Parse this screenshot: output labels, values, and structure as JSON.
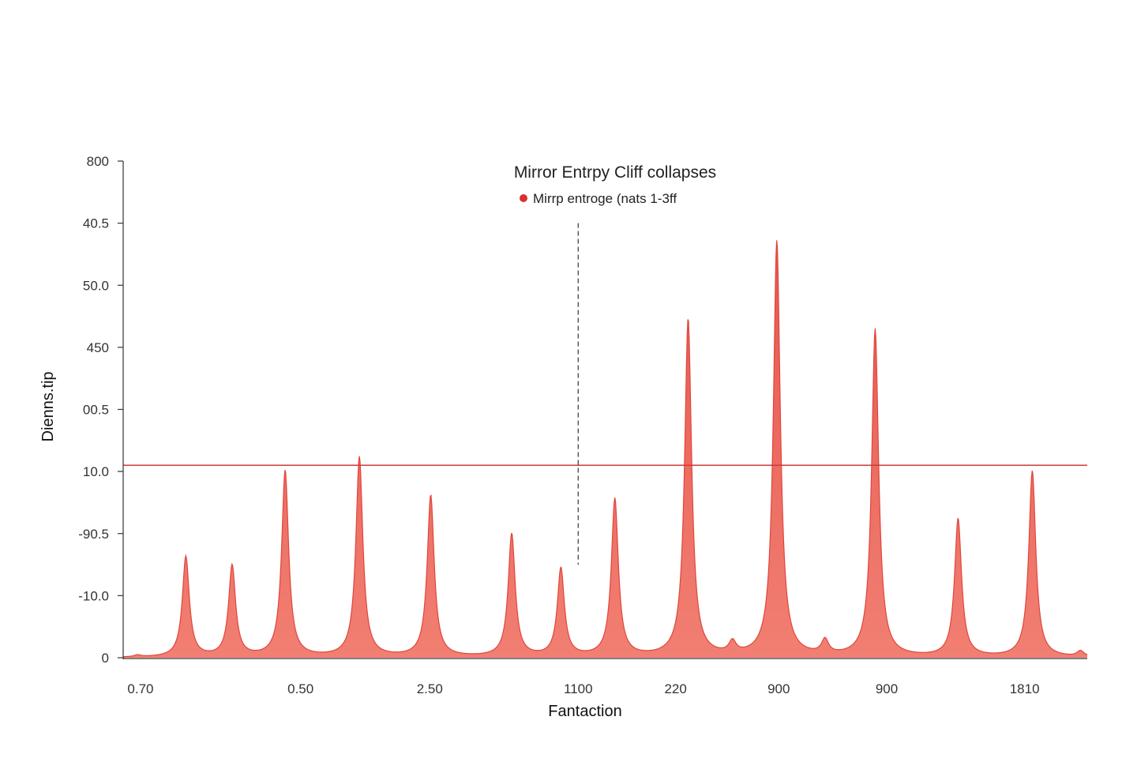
{
  "chart_data": {
    "type": "area",
    "title": "Mirror Entrpy Cliff collapses",
    "xlabel": "Fantaction",
    "ylabel": "Dienns.tip",
    "x_tick_labels": [
      "0.70",
      "0.50",
      "2.50",
      "1100",
      "220",
      "900",
      "900",
      "1810"
    ],
    "y_tick_labels": [
      "0",
      "-10.0",
      "-90.5",
      "10.0",
      "00.5",
      "450",
      "50.0",
      "40.5",
      "800"
    ],
    "y_tick_values": [
      0,
      1,
      2,
      3,
      4,
      5,
      6,
      7,
      8
    ],
    "ylim": [
      0,
      8
    ],
    "xlim": [
      0,
      100
    ],
    "legend": {
      "label": "Mirrp entroge (nats 1-3ff",
      "placement": "top-center"
    },
    "series": [
      {
        "name": "Mirrp entroge (nats 1-3ff",
        "color": "#f07466",
        "line_color": "#e0453c",
        "peaks": [
          {
            "x": 1.5,
            "y": 0.03
          },
          {
            "x": 6.5,
            "y": 1.62
          },
          {
            "x": 11.3,
            "y": 1.47
          },
          {
            "x": 16.8,
            "y": 3.0
          },
          {
            "x": 24.5,
            "y": 3.22
          },
          {
            "x": 31.9,
            "y": 2.6
          },
          {
            "x": 40.3,
            "y": 1.98
          },
          {
            "x": 45.4,
            "y": 1.42
          },
          {
            "x": 51.0,
            "y": 2.54
          },
          {
            "x": 58.6,
            "y": 5.44
          },
          {
            "x": 63.2,
            "y": 0.19
          },
          {
            "x": 67.8,
            "y": 6.7
          },
          {
            "x": 72.8,
            "y": 0.23
          },
          {
            "x": 78.0,
            "y": 5.28
          },
          {
            "x": 86.6,
            "y": 2.22
          },
          {
            "x": 94.3,
            "y": 3.0
          },
          {
            "x": 99.3,
            "y": 0.09
          }
        ]
      }
    ],
    "reference_lines": [
      {
        "orientation": "horizontal",
        "y": 3.1,
        "color": "#cc3b3b",
        "style": "solid"
      },
      {
        "orientation": "vertical",
        "x": 47.2,
        "y_from": 1.5,
        "y_to": 7.0,
        "color": "#444444",
        "style": "dashed"
      }
    ],
    "grid": false
  }
}
